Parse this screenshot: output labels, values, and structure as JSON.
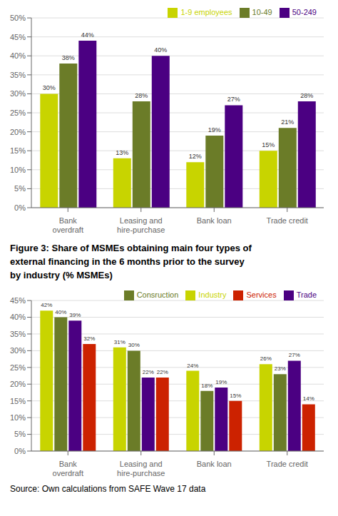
{
  "chart_data": [
    {
      "type": "bar",
      "categories": [
        "Bank\noverdraft",
        "Leasing and\nhire-purchase",
        "Bank loan",
        "Trade credit"
      ],
      "series": [
        {
          "name": "1-9 employees",
          "color": "#c8d400",
          "values": [
            30,
            13,
            12,
            15
          ],
          "value_labels": [
            "30%",
            "13%",
            "12%",
            "15%"
          ]
        },
        {
          "name": "10-49",
          "color": "#6b7c28",
          "values": [
            38,
            28,
            19,
            21
          ],
          "value_labels": [
            "38%",
            "28%",
            "19%",
            "21%"
          ]
        },
        {
          "name": "50-249",
          "color": "#4b0082",
          "values": [
            44,
            40,
            27,
            28
          ],
          "value_labels": [
            "44%",
            "40%",
            "27%",
            "28%"
          ]
        }
      ],
      "ylim": [
        0,
        50
      ],
      "yticks": [
        {
          "value": 0,
          "label": "0%"
        },
        {
          "value": 5,
          "label": "5%"
        },
        {
          "value": 10,
          "label": "10%"
        },
        {
          "value": 15,
          "label": "15%"
        },
        {
          "value": 20,
          "label": "20%"
        },
        {
          "value": 25,
          "label": "25%"
        },
        {
          "value": 30,
          "label": "30%"
        },
        {
          "value": 35,
          "label": "35%"
        },
        {
          "value": 40,
          "label": "40%"
        },
        {
          "value": 45,
          "label": "45%"
        },
        {
          "value": 50,
          "label": "50%"
        }
      ],
      "grid": true,
      "legend": "upper right",
      "data_labels": true
    },
    {
      "type": "bar",
      "title": "Figure 3: Share of MSMEs obtaining main four types of\nexternal financing in the 6 months prior to the survey\nby industry (% MSMEs)",
      "categories": [
        "Bank\noverdraft",
        "Leasing and\nhire-purchase",
        "Bank loan",
        "Trade credit"
      ],
      "series": [
        {
          "name": "Industry",
          "color": "#c8d400",
          "values": [
            42,
            31,
            24,
            26
          ],
          "value_labels": [
            "42%",
            "31%",
            "24%",
            "26%"
          ]
        },
        {
          "name": "Consruction",
          "color": "#6b7c28",
          "values": [
            40,
            30,
            18,
            23
          ],
          "value_labels": [
            "40%",
            "30%",
            "18%",
            "23%"
          ]
        },
        {
          "name": "Trade",
          "color": "#4b0082",
          "values": [
            39,
            22,
            19,
            27
          ],
          "value_labels": [
            "39%",
            "22%",
            "19%",
            "27%"
          ]
        },
        {
          "name": "Services",
          "color": "#cc2200",
          "values": [
            32,
            22,
            15,
            14
          ],
          "value_labels": [
            "32%",
            "22%",
            "15%",
            "14%"
          ]
        }
      ],
      "ylim": [
        0,
        45
      ],
      "yticks": [
        {
          "value": 0,
          "label": "0%"
        },
        {
          "value": 5,
          "label": "5%"
        },
        {
          "value": 10,
          "label": "10%"
        },
        {
          "value": 15,
          "label": "15%"
        },
        {
          "value": 20,
          "label": "20%"
        },
        {
          "value": 25,
          "label": "25%"
        },
        {
          "value": 30,
          "label": "30%"
        },
        {
          "value": 35,
          "label": "35%"
        },
        {
          "value": 40,
          "label": "40%"
        },
        {
          "value": 45,
          "label": "45%"
        }
      ],
      "grid": true,
      "legend": "upper right",
      "data_labels": true,
      "annotations": [
        "Source: Own calculations from SAFE Wave 17 data"
      ]
    }
  ]
}
